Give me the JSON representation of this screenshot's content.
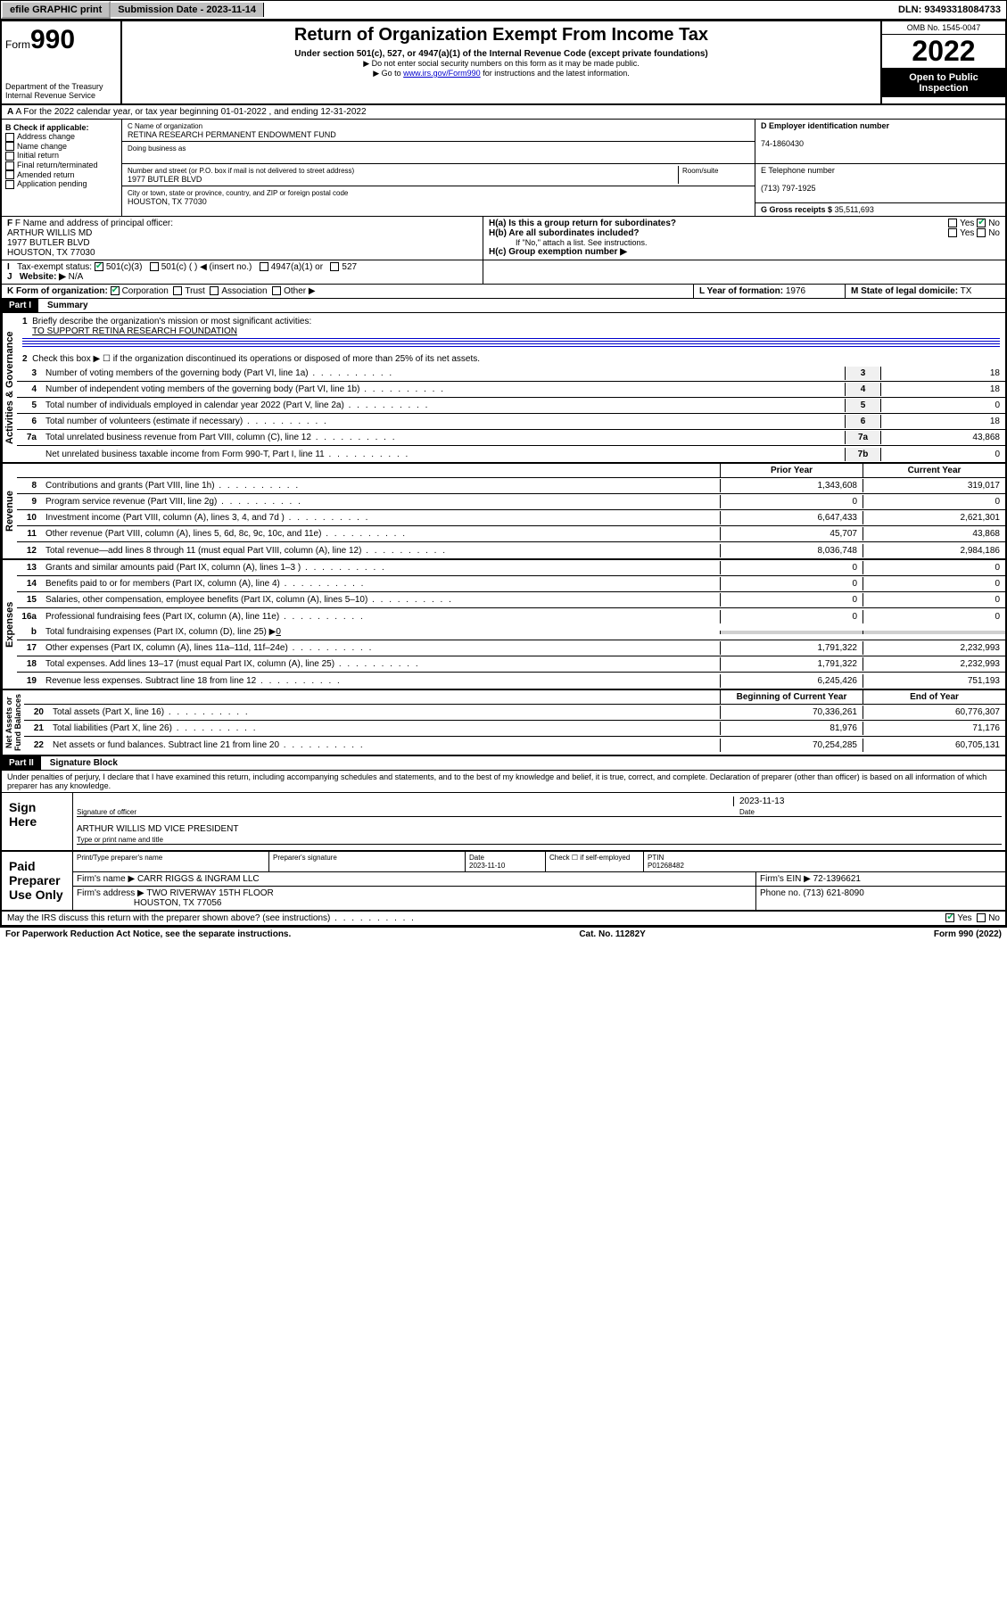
{
  "topbar": {
    "efile": "efile GRAPHIC print",
    "sub_label": "Submission Date - 2023-11-14",
    "dln": "DLN: 93493318084733"
  },
  "header": {
    "form_prefix": "Form",
    "form_num": "990",
    "dept": "Department of the Treasury",
    "irs": "Internal Revenue Service",
    "title": "Return of Organization Exempt From Income Tax",
    "sub1": "Under section 501(c), 527, or 4947(a)(1) of the Internal Revenue Code (except private foundations)",
    "sub2": "▶ Do not enter social security numbers on this form as it may be made public.",
    "sub3_pre": "▶ Go to ",
    "sub3_link": "www.irs.gov/Form990",
    "sub3_post": " for instructions and the latest information.",
    "omb": "OMB No. 1545-0047",
    "year": "2022",
    "open": "Open to Public Inspection"
  },
  "row_a": "A For the 2022 calendar year, or tax year beginning 01-01-2022    , and ending 12-31-2022",
  "col_b": {
    "title": "B Check if applicable:",
    "items": [
      "Address change",
      "Name change",
      "Initial return",
      "Final return/terminated",
      "Amended return",
      "Application pending"
    ]
  },
  "col_c": {
    "name_label": "C Name of organization",
    "name": "RETINA RESEARCH PERMANENT ENDOWMENT FUND",
    "dba_label": "Doing business as",
    "addr_label": "Number and street (or P.O. box if mail is not delivered to street address)",
    "room_label": "Room/suite",
    "addr": "1977 BUTLER BLVD",
    "city_label": "City or town, state or province, country, and ZIP or foreign postal code",
    "city": "HOUSTON, TX  77030"
  },
  "col_d": {
    "ein_label": "D Employer identification number",
    "ein": "74-1860430",
    "phone_label": "E Telephone number",
    "phone": "(713) 797-1925",
    "gross_label": "G Gross receipts $",
    "gross": "35,511,693"
  },
  "row_f": {
    "label": "F  Name and address of principal officer:",
    "name": "ARTHUR WILLIS MD",
    "addr": "1977 BUTLER BLVD",
    "city": "HOUSTON, TX  77030"
  },
  "row_h": {
    "ha": "H(a)  Is this a group return for subordinates?",
    "hb": "H(b)  Are all subordinates included?",
    "hb_note": "If \"No,\" attach a list. See instructions.",
    "hc": "H(c)  Group exemption number ▶"
  },
  "row_i": {
    "label": "Tax-exempt status:",
    "opts": [
      "501(c)(3)",
      "501(c) (   ) ◀ (insert no.)",
      "4947(a)(1) or",
      "527"
    ]
  },
  "row_j": {
    "label": "Website: ▶",
    "val": "N/A"
  },
  "row_k": {
    "label": "K Form of organization:",
    "opts": [
      "Corporation",
      "Trust",
      "Association",
      "Other ▶"
    ]
  },
  "row_l": {
    "label": "L Year of formation:",
    "val": "1976"
  },
  "row_m": {
    "label": "M State of legal domicile:",
    "val": "TX"
  },
  "part1": {
    "title": "Part I",
    "subtitle": "Summary",
    "line1_label": "Briefly describe the organization's mission or most significant activities:",
    "line1_val": "TO SUPPORT RETINA RESEARCH FOUNDATION",
    "line2": "Check this box ▶ ☐  if the organization discontinued its operations or disposed of more than 25% of its net assets.",
    "gov_lines": [
      {
        "n": "3",
        "d": "Number of voting members of the governing body (Part VI, line 1a)",
        "c": "3",
        "v": "18"
      },
      {
        "n": "4",
        "d": "Number of independent voting members of the governing body (Part VI, line 1b)",
        "c": "4",
        "v": "18"
      },
      {
        "n": "5",
        "d": "Total number of individuals employed in calendar year 2022 (Part V, line 2a)",
        "c": "5",
        "v": "0"
      },
      {
        "n": "6",
        "d": "Total number of volunteers (estimate if necessary)",
        "c": "6",
        "v": "18"
      },
      {
        "n": "7a",
        "d": "Total unrelated business revenue from Part VIII, column (C), line 12",
        "c": "7a",
        "v": "43,868"
      },
      {
        "n": "",
        "d": "Net unrelated business taxable income from Form 990-T, Part I, line 11",
        "c": "7b",
        "v": "0"
      }
    ],
    "rev_header": {
      "py": "Prior Year",
      "cy": "Current Year"
    },
    "rev_lines": [
      {
        "n": "8",
        "d": "Contributions and grants (Part VIII, line 1h)",
        "py": "1,343,608",
        "cy": "319,017"
      },
      {
        "n": "9",
        "d": "Program service revenue (Part VIII, line 2g)",
        "py": "0",
        "cy": "0"
      },
      {
        "n": "10",
        "d": "Investment income (Part VIII, column (A), lines 3, 4, and 7d )",
        "py": "6,647,433",
        "cy": "2,621,301"
      },
      {
        "n": "11",
        "d": "Other revenue (Part VIII, column (A), lines 5, 6d, 8c, 9c, 10c, and 11e)",
        "py": "45,707",
        "cy": "43,868"
      },
      {
        "n": "12",
        "d": "Total revenue—add lines 8 through 11 (must equal Part VIII, column (A), line 12)",
        "py": "8,036,748",
        "cy": "2,984,186"
      }
    ],
    "exp_lines": [
      {
        "n": "13",
        "d": "Grants and similar amounts paid (Part IX, column (A), lines 1–3 )",
        "py": "0",
        "cy": "0"
      },
      {
        "n": "14",
        "d": "Benefits paid to or for members (Part IX, column (A), line 4)",
        "py": "0",
        "cy": "0"
      },
      {
        "n": "15",
        "d": "Salaries, other compensation, employee benefits (Part IX, column (A), lines 5–10)",
        "py": "0",
        "cy": "0"
      },
      {
        "n": "16a",
        "d": "Professional fundraising fees (Part IX, column (A), line 11e)",
        "py": "0",
        "cy": "0"
      }
    ],
    "exp_b": {
      "n": "b",
      "d": "Total fundraising expenses (Part IX, column (D), line 25) ▶",
      "v": "0"
    },
    "exp_lines2": [
      {
        "n": "17",
        "d": "Other expenses (Part IX, column (A), lines 11a–11d, 11f–24e)",
        "py": "1,791,322",
        "cy": "2,232,993"
      },
      {
        "n": "18",
        "d": "Total expenses. Add lines 13–17 (must equal Part IX, column (A), line 25)",
        "py": "1,791,322",
        "cy": "2,232,993"
      },
      {
        "n": "19",
        "d": "Revenue less expenses. Subtract line 18 from line 12",
        "py": "6,245,426",
        "cy": "751,193"
      }
    ],
    "net_header": {
      "b": "Beginning of Current Year",
      "e": "End of Year"
    },
    "net_lines": [
      {
        "n": "20",
        "d": "Total assets (Part X, line 16)",
        "py": "70,336,261",
        "cy": "60,776,307"
      },
      {
        "n": "21",
        "d": "Total liabilities (Part X, line 26)",
        "py": "81,976",
        "cy": "71,176"
      },
      {
        "n": "22",
        "d": "Net assets or fund balances. Subtract line 21 from line 20",
        "py": "70,254,285",
        "cy": "60,705,131"
      }
    ]
  },
  "part2": {
    "title": "Part II",
    "subtitle": "Signature Block",
    "decl": "Under penalties of perjury, I declare that I have examined this return, including accompanying schedules and statements, and to the best of my knowledge and belief, it is true, correct, and complete. Declaration of preparer (other than officer) is based on all information of which preparer has any knowledge.",
    "sign_here": "Sign Here",
    "sig_officer": "Signature of officer",
    "sig_date": "2023-11-13",
    "sig_date_label": "Date",
    "officer_name": "ARTHUR WILLIS MD  VICE PRESIDENT",
    "officer_label": "Type or print name and title",
    "paid": "Paid Preparer Use Only",
    "prep_name_label": "Print/Type preparer's name",
    "prep_sig_label": "Preparer's signature",
    "prep_date_label": "Date",
    "prep_date": "2023-11-10",
    "self_emp": "Check ☐ if self-employed",
    "ptin_label": "PTIN",
    "ptin": "P01268482",
    "firm_name_label": "Firm's name    ▶",
    "firm_name": "CARR RIGGS & INGRAM LLC",
    "firm_ein_label": "Firm's EIN ▶",
    "firm_ein": "72-1396621",
    "firm_addr_label": "Firm's address ▶",
    "firm_addr1": "TWO RIVERWAY 15TH FLOOR",
    "firm_addr2": "HOUSTON, TX  77056",
    "firm_phone_label": "Phone no.",
    "firm_phone": "(713) 621-8090",
    "discuss": "May the IRS discuss this return with the preparer shown above? (see instructions)"
  },
  "footer": {
    "left": "For Paperwork Reduction Act Notice, see the separate instructions.",
    "mid": "Cat. No. 11282Y",
    "right": "Form 990 (2022)"
  }
}
